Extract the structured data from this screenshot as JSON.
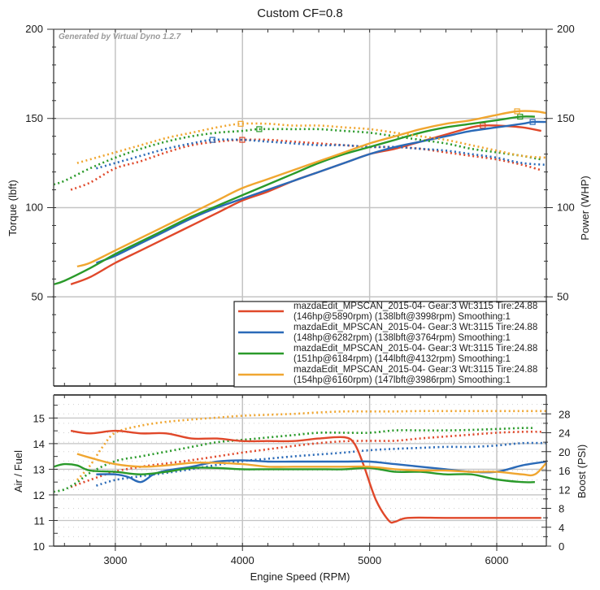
{
  "chart_data": [
    {
      "type": "line",
      "title": "Custom CF=0.8",
      "watermark": "Generated by Virtual Dyno 1.2.7",
      "xlabel": "Engine Speed (RPM)",
      "ylabel": "Torque (lbft)",
      "y2label": "Power (WHP)",
      "xlim": [
        2515,
        6390
      ],
      "ylim": [
        0,
        200
      ],
      "y2lim": [
        0,
        200
      ],
      "x_ticks": [
        3000,
        4000,
        5000,
        6000
      ],
      "y_ticks": [
        50,
        100,
        150,
        200
      ],
      "y2_ticks": [
        50,
        100,
        150,
        200
      ],
      "grid": true,
      "legend_position": "bottom-right",
      "series": [
        {
          "name": "mazdaEdit_MPSCAN_2015-04- Gear:3 Wt:3115 Tire:24.88",
          "detail": "(146hp@5890rpm) (138lbft@3998rpm) Smoothing:1",
          "color": "#e0482a",
          "power": {
            "x": [
              2650,
              2800,
              3000,
              3200,
              3400,
              3600,
              3800,
              4000,
              4200,
              4400,
              4600,
              4800,
              5000,
              5200,
              5400,
              5600,
              5800,
              5890,
              6000,
              6200,
              6350
            ],
            "y": [
              57,
              61,
              69,
              76,
              83,
              90,
              97,
              104,
              109,
              115,
              120,
              125,
              130,
              133,
              137,
              141,
              145,
              146,
              146,
              145,
              143
            ]
          },
          "torque": {
            "x": [
              2650,
              2800,
              3000,
              3200,
              3400,
              3600,
              3800,
              3998,
              4200,
              4400,
              4600,
              4800,
              5000,
              5200,
              5400,
              5600,
              5800,
              6000,
              6200,
              6350
            ],
            "y": [
              110,
              114,
              122,
              126,
              131,
              135,
              137,
              138,
              138,
              137,
              136,
              135,
              134,
              134,
              133,
              131,
              129,
              127,
              124,
              121
            ]
          },
          "power_peak": {
            "x": 5890,
            "y": 146
          },
          "torque_peak": {
            "x": 3998,
            "y": 138
          }
        },
        {
          "name": "mazdaEdit_MPSCAN_2015-04- Gear:3 Wt:3115 Tire:24.88",
          "detail": "(148hp@6282rpm) (138lbft@3764rpm) Smoothing:1",
          "color": "#2a6ab8",
          "power": {
            "x": [
              2850,
              3000,
              3200,
              3400,
              3600,
              3800,
              4000,
              4200,
              4400,
              4600,
              4800,
              5000,
              5200,
              5400,
              5600,
              5800,
              6000,
              6200,
              6282,
              6390
            ],
            "y": [
              69,
              73,
              80,
              87,
              94,
              100,
              105,
              110,
              115,
              120,
              125,
              130,
              134,
              137,
              140,
              143,
              145,
              147,
              148,
              148
            ]
          },
          "torque": {
            "x": [
              2850,
              3000,
              3200,
              3400,
              3600,
              3764,
              4000,
              4200,
              4400,
              4600,
              4800,
              5000,
              5200,
              5400,
              5600,
              5800,
              6000,
              6200,
              6390
            ],
            "y": [
              122,
              125,
              129,
              133,
              136,
              138,
              138,
              137,
              136,
              135,
              135,
              134,
              134,
              133,
              132,
              130,
              128,
              125,
              124
            ]
          },
          "power_peak": {
            "x": 6282,
            "y": 148
          },
          "torque_peak": {
            "x": 3764,
            "y": 138
          }
        },
        {
          "name": "mazdaEdit_MPSCAN_2015-04- Gear:3 Wt:3115 Tire:24.88",
          "detail": "(151hp@6184rpm) (144lbft@4132rpm) Smoothing:1",
          "color": "#2a9a2a",
          "power": {
            "x": [
              2515,
              2600,
              2800,
              3000,
              3200,
              3400,
              3600,
              3800,
              4000,
              4200,
              4400,
              4600,
              4800,
              5000,
              5200,
              5400,
              5600,
              5800,
              6000,
              6184,
              6300
            ],
            "y": [
              57,
              59,
              66,
              74,
              81,
              88,
              95,
              101,
              107,
              113,
              119,
              125,
              130,
              134,
              138,
              142,
              145,
              147,
              149,
              151,
              151
            ]
          },
          "torque": {
            "x": [
              2515,
              2600,
              2800,
              3000,
              3200,
              3400,
              3600,
              3800,
              4000,
              4132,
              4400,
              4600,
              4800,
              5000,
              5200,
              5400,
              5600,
              5800,
              6000,
              6200,
              6350
            ],
            "y": [
              113,
              115,
              122,
              128,
              133,
              137,
              140,
              142,
              143,
              144,
              144,
              144,
              143,
              142,
              140,
              138,
              136,
              133,
              131,
              129,
              127
            ]
          },
          "power_peak": {
            "x": 6184,
            "y": 151
          },
          "torque_peak": {
            "x": 4132,
            "y": 144
          }
        },
        {
          "name": "mazdaEdit_MPSCAN_2015-04- Gear:3 Wt:3115 Tire:24.88",
          "detail": "(154hp@6160rpm) (147lbft@3986rpm) Smoothing:1",
          "color": "#f0a630",
          "power": {
            "x": [
              2700,
              2800,
              3000,
              3200,
              3400,
              3600,
              3800,
              4000,
              4200,
              4400,
              4600,
              4800,
              5000,
              5200,
              5400,
              5600,
              5800,
              6000,
              6160,
              6300,
              6390
            ],
            "y": [
              67,
              69,
              76,
              83,
              90,
              97,
              104,
              111,
              116,
              121,
              126,
              131,
              136,
              140,
              144,
              147,
              149,
              152,
              154,
              154,
              153
            ]
          },
          "torque": {
            "x": [
              2700,
              2800,
              3000,
              3200,
              3400,
              3600,
              3800,
              3986,
              4200,
              4400,
              4600,
              4800,
              5000,
              5200,
              5400,
              5600,
              5800,
              6000,
              6200,
              6390
            ],
            "y": [
              125,
              127,
              131,
              135,
              139,
              142,
              145,
              147,
              147,
              146,
              146,
              145,
              144,
              142,
              140,
              138,
              135,
              132,
              129,
              128
            ]
          },
          "power_peak": {
            "x": 6160,
            "y": 154
          },
          "torque_peak": {
            "x": 3986,
            "y": 147
          }
        }
      ]
    },
    {
      "type": "line",
      "xlabel": "Engine Speed (RPM)",
      "ylabel": "Air / Fuel",
      "y2label": "Boost (PSI)",
      "xlim": [
        2515,
        6390
      ],
      "ylim": [
        10,
        15.9
      ],
      "y2lim": [
        0,
        32
      ],
      "x_ticks": [
        3000,
        4000,
        5000,
        6000
      ],
      "y_ticks": [
        10,
        11,
        12,
        13,
        14,
        15
      ],
      "y2_ticks": [
        0,
        4,
        8,
        12,
        16,
        20,
        24,
        28
      ],
      "grid": true,
      "series": [
        {
          "color": "#e0482a",
          "afr": {
            "x": [
              2650,
              2800,
              3000,
              3200,
              3400,
              3600,
              3800,
              4000,
              4200,
              4400,
              4600,
              4800,
              4880,
              4950,
              5050,
              5150,
              5200,
              5300,
              5600,
              6000,
              6350
            ],
            "y": [
              14.5,
              14.4,
              14.5,
              14.4,
              14.4,
              14.2,
              14.2,
              14.1,
              14.1,
              14.1,
              14.2,
              14.25,
              14.0,
              13.2,
              11.8,
              11.0,
              10.95,
              11.1,
              11.1,
              11.1,
              11.1
            ]
          },
          "boost": {
            "x": [
              2650,
              2800,
              3000,
              3200,
              3400,
              3600,
              3800,
              4000,
              4200,
              4400,
              4600,
              4800,
              5000,
              5200,
              5400,
              5600,
              5800,
              6000,
              6200,
              6350
            ],
            "y": [
              12.5,
              14,
              15.8,
              16.8,
              17.5,
              18.2,
              19,
              19.8,
              20.5,
              21.2,
              21.8,
              22.2,
              22.3,
              22.3,
              22.8,
              23.2,
              23.6,
              24,
              24.2,
              24.2
            ]
          }
        },
        {
          "color": "#2a6ab8",
          "afr": {
            "x": [
              2850,
              3000,
              3100,
              3200,
              3300,
              3400,
              3600,
              3800,
              4000,
              4200,
              4400,
              4600,
              4800,
              5000,
              5200,
              5400,
              5600,
              5800,
              6000,
              6200,
              6390
            ],
            "y": [
              12.8,
              12.8,
              12.7,
              12.5,
              12.8,
              12.95,
              13.1,
              13.3,
              13.35,
              13.3,
              13.3,
              13.3,
              13.3,
              13.3,
              13.2,
              13.1,
              13.0,
              12.9,
              12.9,
              13.15,
              13.3
            ]
          },
          "boost": {
            "x": [
              2850,
              3000,
              3200,
              3400,
              3600,
              3800,
              4000,
              4200,
              4400,
              4600,
              4800,
              5000,
              5200,
              5400,
              5600,
              5800,
              6000,
              6200,
              6390
            ],
            "y": [
              12.8,
              14,
              14.8,
              15.5,
              16.3,
              17.2,
              18,
              18.5,
              19,
              19.4,
              19.8,
              20.3,
              20.6,
              20.8,
              21,
              21,
              21.3,
              21.8,
              21.8
            ]
          }
        },
        {
          "color": "#2a9a2a",
          "afr": {
            "x": [
              2515,
              2600,
              2700,
              2800,
              3000,
              3200,
              3400,
              3600,
              3800,
              4000,
              4200,
              4400,
              4600,
              4800,
              5000,
              5200,
              5400,
              5600,
              5800,
              6000,
              6200,
              6300
            ],
            "y": [
              13.1,
              13.2,
              13.15,
              12.95,
              12.9,
              12.8,
              12.9,
              13.05,
              13.05,
              13.0,
              13.0,
              13.0,
              13.0,
              13.0,
              13.05,
              12.9,
              12.9,
              12.8,
              12.8,
              12.6,
              12.5,
              12.5
            ]
          },
          "boost": {
            "x": [
              2515,
              2600,
              2700,
              2800,
              3000,
              3200,
              3400,
              3600,
              3800,
              4000,
              4200,
              4400,
              4600,
              4800,
              5000,
              5200,
              5400,
              5600,
              5800,
              6000,
              6200,
              6300
            ],
            "y": [
              11.5,
              12,
              13.5,
              15.5,
              18,
              19,
              20,
              21,
              22,
              22.5,
              23,
              23.5,
              24,
              24,
              24,
              24.5,
              24.5,
              24.5,
              24.6,
              24.8,
              25,
              25
            ]
          }
        },
        {
          "color": "#f0a630",
          "afr": {
            "x": [
              2700,
              2800,
              3000,
              3200,
              3400,
              3600,
              3800,
              4000,
              4200,
              4400,
              4600,
              4800,
              5000,
              5200,
              5400,
              5600,
              5800,
              6000,
              6200,
              6300,
              6390
            ],
            "y": [
              13.6,
              13.45,
              13.2,
              13.1,
              13.15,
              13.25,
              13.25,
              13.2,
              13.1,
              13.1,
              13.1,
              13.1,
              13.1,
              13.0,
              12.95,
              12.95,
              12.9,
              12.9,
              12.8,
              12.8,
              13.25
            ]
          },
          "boost": {
            "x": [
              2700,
              2800,
              2900,
              3000,
              3200,
              3400,
              3600,
              3800,
              4000,
              4200,
              4400,
              4600,
              4800,
              5000,
              5200,
              5400,
              5600,
              5800,
              6000,
              6200,
              6390
            ],
            "y": [
              14,
              17,
              21,
              24,
              25.5,
              26.3,
              26.8,
              27.2,
              27.6,
              27.8,
              28,
              28.3,
              28.5,
              28.5,
              28.5,
              28.6,
              28.6,
              28.6,
              28.6,
              28.6,
              28.6
            ]
          }
        }
      ]
    }
  ]
}
